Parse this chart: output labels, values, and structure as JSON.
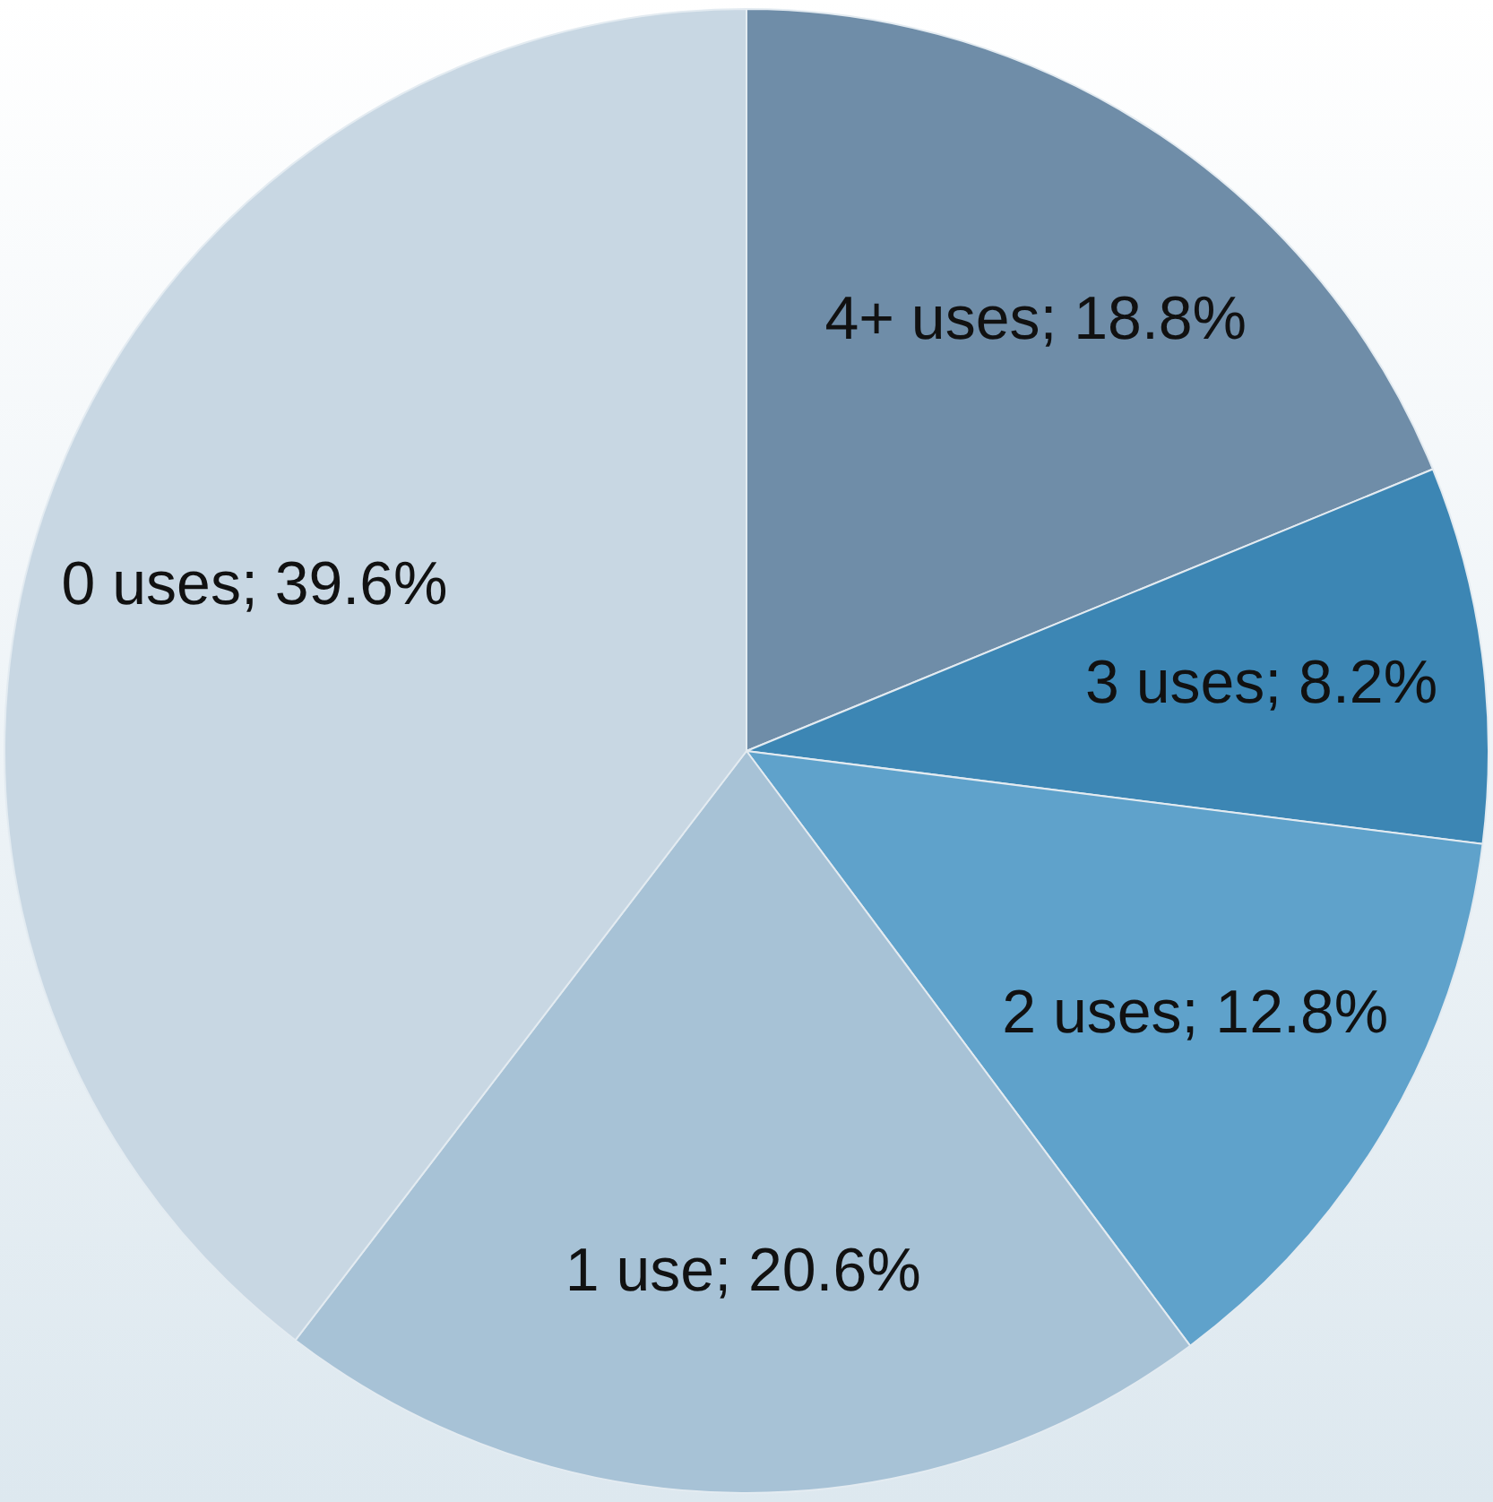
{
  "chart_data": {
    "type": "pie",
    "categories": [
      "4+ uses",
      "3 uses",
      "2 uses",
      "1 use",
      "0 uses"
    ],
    "values": [
      18.8,
      8.2,
      12.8,
      20.6,
      39.6
    ],
    "colors": [
      "#6f8da8",
      "#3c86b4",
      "#5fa2cb",
      "#a7c2d6",
      "#c8d7e3"
    ],
    "value_labels": [
      "18.8%",
      "8.2%",
      "12.8%",
      "20.6%",
      "39.6%"
    ],
    "legend": false
  }
}
